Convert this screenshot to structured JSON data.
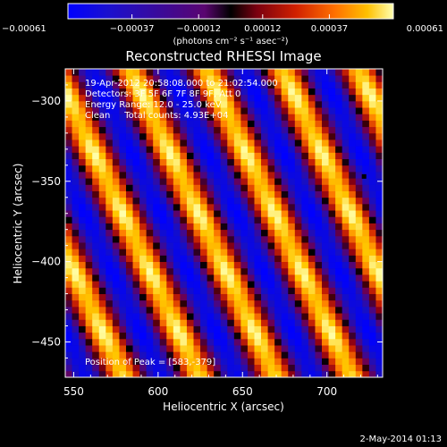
{
  "chart_data": {
    "type": "heatmap",
    "title": "Reconstructed RHESSI Image",
    "xlabel": "Heliocentric X (arcsec)",
    "ylabel": "Heliocentric Y (arcsec)",
    "xlim": [
      545,
      733
    ],
    "ylim": [
      -472,
      -280
    ],
    "x_ticks": [
      550,
      600,
      650,
      700
    ],
    "x_tick_labels": [
      "550",
      "600",
      "650",
      "700"
    ],
    "y_ticks": [
      -300,
      -350,
      -400,
      -450
    ],
    "y_tick_labels": [
      "−300",
      "−350",
      "−400",
      "−450"
    ],
    "colorbar": {
      "min": -0.00061,
      "max": 0.00061,
      "ticks": [
        -0.00061,
        -0.00037,
        -0.00012,
        0.00012,
        0.00037,
        0.00061
      ],
      "tick_labels": [
        "−0.00061",
        "−0.00037",
        "−0.00012",
        "0.00012",
        "0.00037",
        "0.00061"
      ],
      "unit_label": "(photons cm⁻² s⁻¹ asec⁻²)"
    },
    "annotations": [
      "19-Apr-2012 20:58:08.000 to 21:02:54.000",
      "Detectors: 3F 5F 6F 7F 8F 9F, Att 0",
      "Energy Range: 12.0 - 25.0 keV",
      "Clean     Total counts: 4.93E+04"
    ],
    "peak": {
      "label": "Position of Peak = [583,-379]",
      "x": 583,
      "y": -379
    },
    "marker": {
      "x": 722,
      "y": -347
    },
    "grid": false,
    "stripes": {
      "direction": "diagonal, descending to the lower right",
      "period_x_arcsec": 45
    }
  },
  "footer": {
    "date": "2-May-2014 01:13"
  },
  "colors": {
    "background": "#000000",
    "text": "#ffffff",
    "colormap": [
      "#0000ff",
      "#1010c0",
      "#400090",
      "#8a0038",
      "#cc1a00",
      "#ff6a00",
      "#ffc000",
      "#ffff90"
    ]
  }
}
